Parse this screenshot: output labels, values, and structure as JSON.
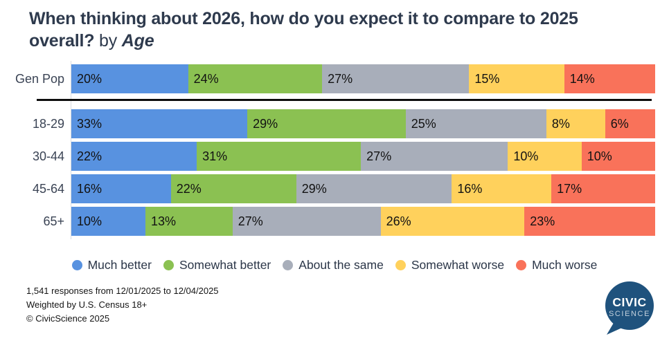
{
  "title": {
    "line1": "When thinking about 2026, how do you expect it to compare to 2025",
    "line2_bold": "overall?",
    "line2_normal": " by ",
    "line2_italic": "Age"
  },
  "chart_data": {
    "type": "bar",
    "orientation": "horizontal",
    "stacked": true,
    "unit": "%",
    "categories": [
      "Gen Pop",
      "18-29",
      "30-44",
      "45-64",
      "65+"
    ],
    "series": [
      {
        "name": "Much better",
        "color": "#5892E0",
        "values": [
          20,
          33,
          22,
          16,
          10
        ]
      },
      {
        "name": "Somewhat better",
        "color": "#8BC152",
        "values": [
          24,
          29,
          31,
          22,
          13
        ]
      },
      {
        "name": "About the same",
        "color": "#A8AEBA",
        "values": [
          27,
          25,
          27,
          29,
          27
        ]
      },
      {
        "name": "Somewhat worse",
        "color": "#FFD15C",
        "values": [
          15,
          8,
          10,
          16,
          26
        ]
      },
      {
        "name": "Much worse",
        "color": "#F9725A",
        "values": [
          14,
          6,
          10,
          17,
          23
        ]
      }
    ],
    "xlim": [
      0,
      100
    ],
    "grid": false,
    "legend_position": "bottom",
    "divider_after_category": "Gen Pop",
    "title": "When thinking about 2026, how do you expect it to compare to 2025 overall? by Age"
  },
  "footer": {
    "line1": "1,541 responses from 12/01/2025 to 12/04/2025",
    "line2": "Weighted by U.S. Census 18+",
    "line3": "© CivicScience 2025"
  },
  "logo": {
    "line1": "CIVIC",
    "line2": "SCIENCE",
    "bubble_color": "#1F527D"
  },
  "colors": {
    "title_text": "#2E3A4D",
    "row_label_text": "#3A4354",
    "segment_label_text": "#121212",
    "legend_text": "#2B3648",
    "divider": "#0d0d0d",
    "background": "#ffffff"
  }
}
